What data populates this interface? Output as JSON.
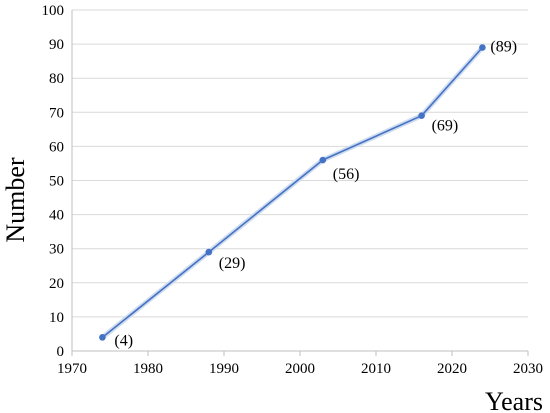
{
  "chart_data": {
    "type": "line",
    "title": "",
    "xlabel": "Years",
    "ylabel": "Number",
    "xlim": [
      1970,
      2030
    ],
    "ylim": [
      0,
      100
    ],
    "xticks": [
      1970,
      1980,
      1990,
      2000,
      2010,
      2020,
      2030
    ],
    "yticks": [
      0,
      10,
      20,
      30,
      40,
      50,
      60,
      70,
      80,
      90,
      100
    ],
    "grid": "horizontal",
    "legend": "none",
    "series": [
      {
        "color": "#4472c4",
        "points": [
          {
            "x": 1974,
            "y": 4,
            "label": "(4)"
          },
          {
            "x": 1988,
            "y": 29,
            "label": "(29)"
          },
          {
            "x": 2003,
            "y": 56,
            "label": "(56)"
          },
          {
            "x": 2016,
            "y": 69,
            "label": "(69)"
          },
          {
            "x": 2024,
            "y": 89,
            "label": "(89)"
          }
        ]
      }
    ]
  }
}
